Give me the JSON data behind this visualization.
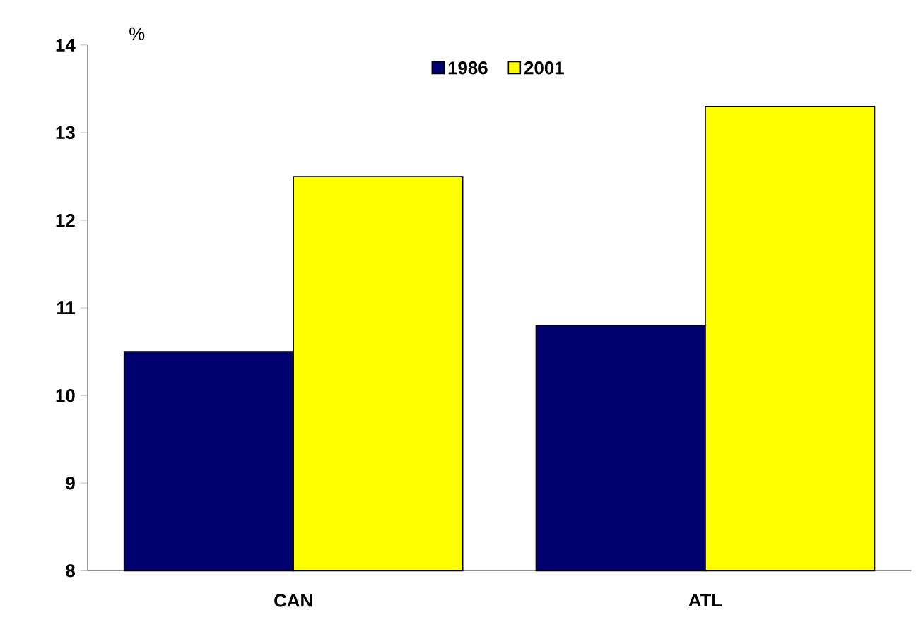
{
  "chart_data": {
    "type": "bar",
    "ylabel": "%",
    "categories": [
      "CAN",
      "ATL"
    ],
    "series": [
      {
        "name": "1986",
        "color": "#00006e",
        "values": [
          10.5,
          10.8
        ]
      },
      {
        "name": "2001",
        "color": "#ffff00",
        "values": [
          12.5,
          13.3
        ]
      }
    ],
    "ylim": [
      8,
      14
    ],
    "yticks": [
      8,
      9,
      10,
      11,
      12,
      13,
      14
    ],
    "legend": "top",
    "grid": false
  }
}
